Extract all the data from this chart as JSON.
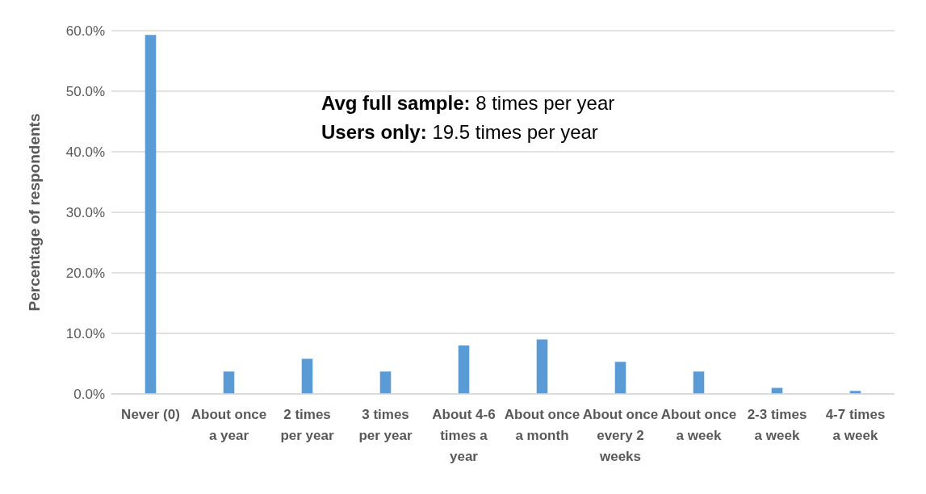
{
  "chart_data": {
    "type": "bar",
    "ylabel": "Percentage of respondents",
    "categories": [
      "Never (0)",
      "About once a year",
      "2 times per year",
      "3 times per year",
      "About 4-6 times a year",
      "About once a month",
      "About once every 2 weeks",
      "About once a week",
      "2-3 times a week",
      "4-7 times a week"
    ],
    "values": [
      59.3,
      3.7,
      5.8,
      3.7,
      8.0,
      9.0,
      5.3,
      3.7,
      1.0,
      0.5
    ],
    "color": "#5b9bd5",
    "ylim": [
      0,
      60
    ],
    "yticks": [
      {
        "value": 0,
        "label": "0.0%"
      },
      {
        "value": 10,
        "label": "10.0%"
      },
      {
        "value": 20,
        "label": "20.0%"
      },
      {
        "value": 30,
        "label": "30.0%"
      },
      {
        "value": 40,
        "label": "40.0%"
      },
      {
        "value": 50,
        "label": "50.0%"
      },
      {
        "value": 60,
        "label": "60.0%"
      }
    ],
    "grid": "y",
    "annotations": [
      "Avg full sample: 8 times per year",
      "Users only: 19.5 times per year"
    ]
  }
}
